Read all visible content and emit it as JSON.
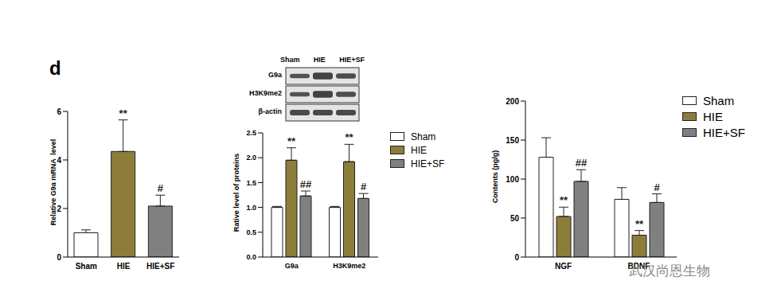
{
  "panel_label": "d",
  "watermark": "武汉尚恩生物",
  "blot": {
    "lanes": [
      "Sham",
      "HIE",
      "HIE+SF"
    ],
    "rows": [
      "G9a",
      "H3K9me2",
      "β-actin"
    ]
  },
  "chart_data": [
    {
      "type": "bar",
      "y_label": "Relative G9a mRNA  level",
      "categories": [
        "Sham",
        "HIE",
        "HIE+SF"
      ],
      "values": [
        1.0,
        4.35,
        2.1
      ],
      "errors": [
        0.12,
        1.3,
        0.45
      ],
      "annotations": [
        null,
        "**",
        "#"
      ],
      "colors": [
        "#ffffff",
        "#8c7d3a",
        "#808080"
      ],
      "ylim": [
        0,
        6
      ],
      "yticks": [
        0,
        2,
        4,
        6
      ]
    },
    {
      "type": "bar",
      "y_label": "Rative level of proteins",
      "categories": [
        "G9a",
        "H3K9me2"
      ],
      "series": [
        {
          "name": "Sham",
          "color": "#ffffff",
          "values": [
            1.0,
            1.0
          ],
          "errors": [
            0.02,
            0.02
          ],
          "annotations": [
            null,
            null
          ]
        },
        {
          "name": "HIE",
          "color": "#8c7d3a",
          "values": [
            1.95,
            1.92
          ],
          "errors": [
            0.25,
            0.35
          ],
          "annotations": [
            "**",
            "**"
          ]
        },
        {
          "name": "HIE+SF",
          "color": "#808080",
          "values": [
            1.23,
            1.18
          ],
          "errors": [
            0.1,
            0.1
          ],
          "annotations": [
            "##",
            "#"
          ]
        }
      ],
      "ylim": [
        0,
        2.5
      ],
      "yticks": [
        {
          "value": 0,
          "label": "0.0"
        },
        0.5,
        {
          "value": 1,
          "label": "1.0"
        },
        1.5,
        {
          "value": 2,
          "label": "2.0"
        },
        2.5
      ],
      "legend": "right"
    },
    {
      "type": "bar",
      "y_label": "Contents (pg/g)",
      "categories": [
        "NGF",
        "BDNF"
      ],
      "series": [
        {
          "name": "Sham",
          "color": "#ffffff",
          "values": [
            128,
            74
          ],
          "errors": [
            25,
            15
          ],
          "annotations": [
            null,
            null
          ]
        },
        {
          "name": "HIE",
          "color": "#8c7d3a",
          "values": [
            52,
            28
          ],
          "errors": [
            12,
            6
          ],
          "annotations": [
            "**",
            "**"
          ]
        },
        {
          "name": "HIE+SF",
          "color": "#808080",
          "values": [
            97,
            70
          ],
          "errors": [
            15,
            11
          ],
          "annotations": [
            "##",
            "#"
          ]
        }
      ],
      "ylim": [
        0,
        200
      ],
      "yticks": [
        0,
        50,
        100,
        150,
        200
      ],
      "legend": "top right"
    }
  ]
}
